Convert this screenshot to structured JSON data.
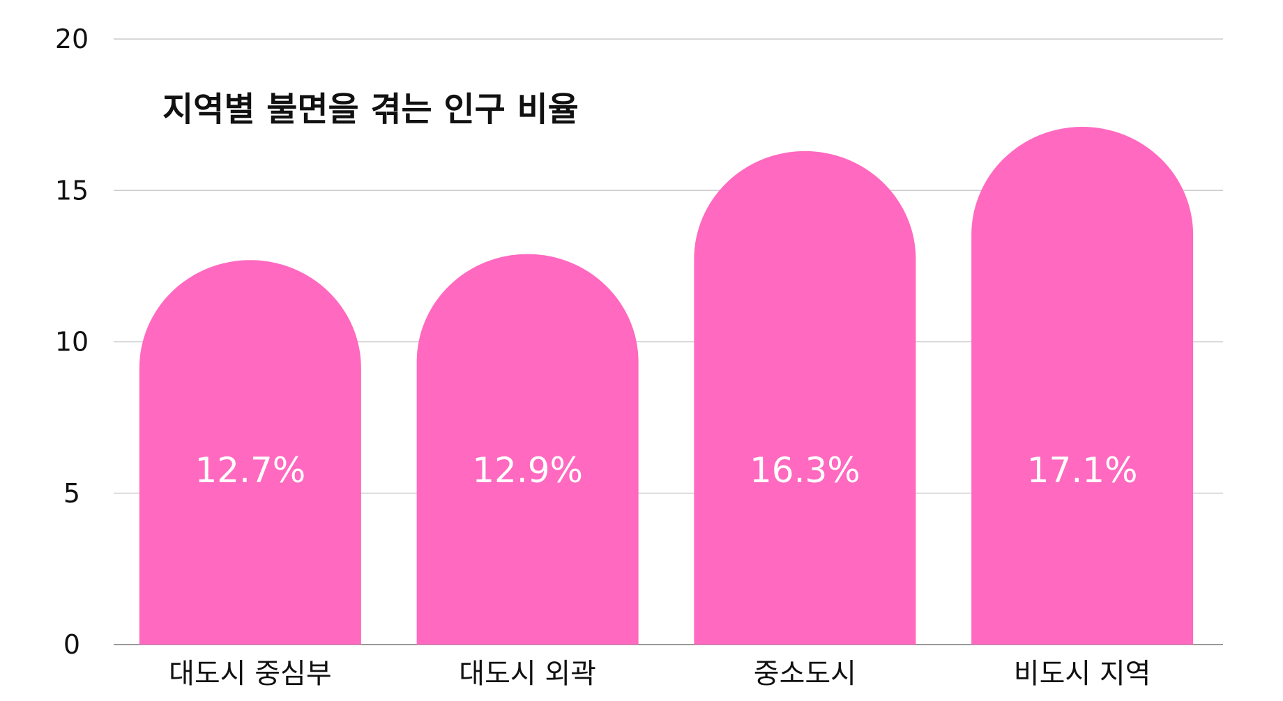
{
  "chart_data": {
    "type": "bar",
    "title": "지역별 불면을 겪는 인구 비율",
    "xlabel": "",
    "ylabel": "",
    "categories": [
      "대도시 중심부",
      "대도시 외곽",
      "중소도시",
      "비도시 지역"
    ],
    "values": [
      12.7,
      12.9,
      16.3,
      17.1
    ],
    "data_labels": [
      "12.7%",
      "12.9%",
      "16.3%",
      "17.1%"
    ],
    "ylim": [
      0,
      20
    ],
    "yticks": [
      0,
      5,
      10,
      15,
      20
    ],
    "ytick_labels": [
      "0",
      "5",
      "10",
      "15",
      "20"
    ],
    "grid": true,
    "bar_shape": "rounded-top",
    "colors": {
      "bar": "#ff69c0",
      "grid": "#cccccc",
      "axis": "#999999",
      "text": "#111111",
      "value_text": "#ffffff"
    }
  }
}
